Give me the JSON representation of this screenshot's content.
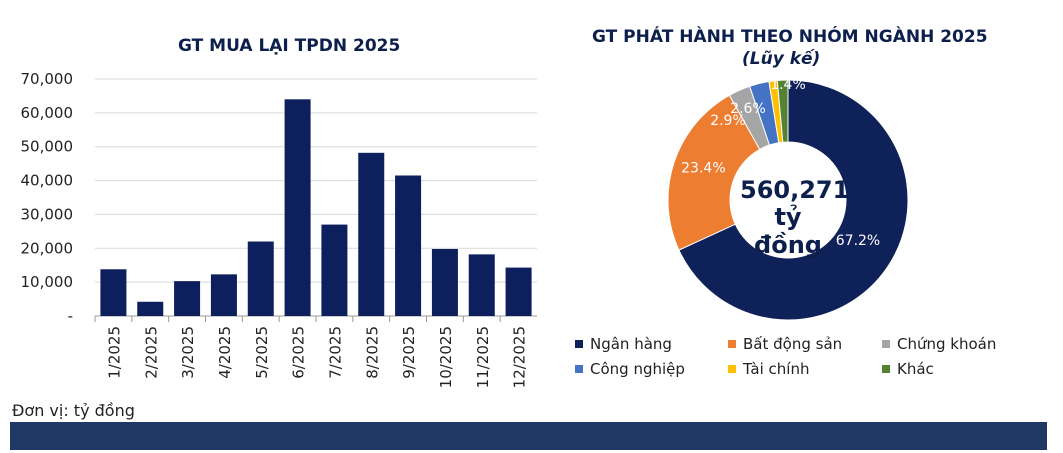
{
  "chart_data": [
    {
      "type": "bar",
      "title": "GT MUA LẠI TPDN 2025",
      "categories": [
        "1/2025",
        "2/2025",
        "3/2025",
        "4/2025",
        "5/2025",
        "6/2025",
        "7/2025",
        "8/2025",
        "9/2025",
        "10/2025",
        "11/2025",
        "12/2025"
      ],
      "values": [
        13800,
        4200,
        10300,
        12300,
        22000,
        64000,
        27000,
        48200,
        41500,
        19800,
        18200,
        14300
      ],
      "yticks": [
        "-",
        "10,000",
        "20,000",
        "30,000",
        "40,000",
        "50,000",
        "60,000",
        "70,000"
      ],
      "ylim": [
        0,
        70000
      ],
      "grid": true,
      "color": "#0d1f5c"
    },
    {
      "type": "pie",
      "title": "GT PHÁT HÀNH THEO NHÓM NGÀNH 2025",
      "subtitle": "(Lũy kế)",
      "center_value": "560,271",
      "center_unit": "tỷ đồng",
      "slices": [
        {
          "name": "Ngân hàng",
          "value": 67.2,
          "label": "67.2%",
          "color": "#0e2159"
        },
        {
          "name": "Bất động sản",
          "value": 23.4,
          "label": "23.4%",
          "color": "#ed7d31"
        },
        {
          "name": "Chứng khoán",
          "value": 2.9,
          "label": "2.9%",
          "color": "#a5a5a5"
        },
        {
          "name": "Công nghiệp",
          "value": 2.6,
          "label": "2.6%",
          "color": "#4472c4"
        },
        {
          "name": "Tài chính",
          "value": 1.1,
          "label": "",
          "color": "#ffc000"
        },
        {
          "name": "Khác",
          "value": 1.4,
          "label": "1.4%",
          "color": "#548235"
        }
      ],
      "legend": "bottom"
    }
  ],
  "unit_note": "Đơn vị: tỷ đồng"
}
